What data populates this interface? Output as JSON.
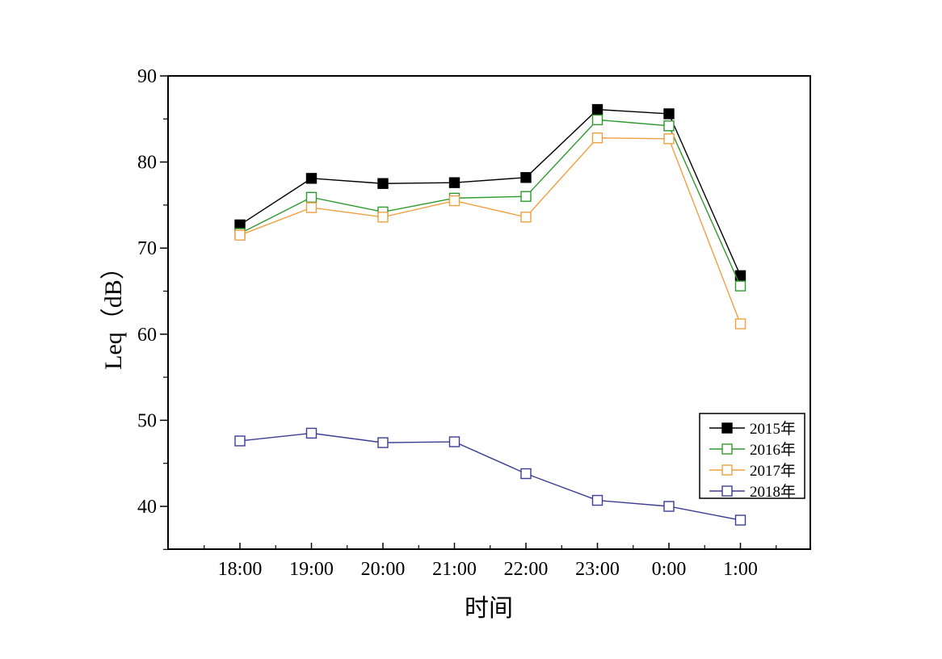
{
  "chart_data": {
    "type": "line",
    "title": "",
    "xlabel": "时间",
    "ylabel": "Leq（dB）",
    "categories": [
      "18:00",
      "19:00",
      "20:00",
      "21:00",
      "22:00",
      "23:00",
      "0:00",
      "1:00"
    ],
    "ylim": [
      35,
      90
    ],
    "yticks": [
      40,
      50,
      60,
      70,
      80,
      90
    ],
    "grid": false,
    "legend_position": "bottom-right",
    "series": [
      {
        "name": "2015年",
        "color": "#000000",
        "marker": "filled-square",
        "values": [
          72.7,
          78.1,
          77.5,
          77.6,
          78.2,
          86.1,
          85.6,
          66.8
        ]
      },
      {
        "name": "2016年",
        "color": "#2e9a2e",
        "marker": "open-square",
        "values": [
          71.7,
          75.9,
          74.2,
          75.8,
          76.0,
          84.9,
          84.2,
          65.6
        ]
      },
      {
        "name": "2017年",
        "color": "#f0a040",
        "marker": "open-square",
        "values": [
          71.5,
          74.7,
          73.6,
          75.5,
          73.6,
          82.8,
          82.7,
          61.2
        ]
      },
      {
        "name": "2018年",
        "color": "#3c3c94",
        "marker": "open-square",
        "values": [
          47.6,
          48.5,
          47.4,
          47.5,
          43.8,
          40.7,
          40.0,
          38.4
        ]
      }
    ]
  }
}
